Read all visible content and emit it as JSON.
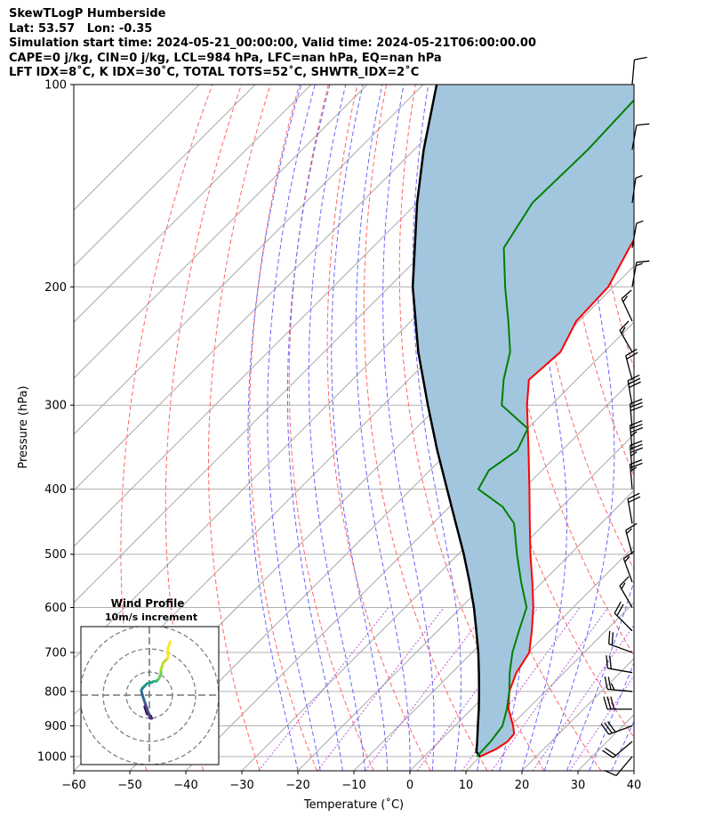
{
  "header": {
    "line1": "SkewTLogP Humberside",
    "line2": "Lat: 53.57   Lon: -0.35",
    "line3": "Simulation start time: 2024-05-21_00:00:00, Valid time: 2024-05-21T06:00:00.00",
    "line4": "CAPE=0 j/kg, CIN=0 j/kg, LCL=984 hPa, LFC=nan hPa, EQ=nan hPa",
    "line5": "LFT IDX=8˚C, K IDX=30˚C, TOTAL TOTS=52˚C, SHWTR_IDX=2˚C"
  },
  "chart_data": [
    {
      "type": "line",
      "subtype": "skew-t log-p",
      "xlabel": "Temperature (˚C)",
      "ylabel": "Pressure (hPa)",
      "xlim": [
        -60,
        40
      ],
      "ylim": [
        1050,
        100
      ],
      "y_scale": "log",
      "x_ticks": [
        "−60",
        "−50",
        "−40",
        "−30",
        "−20",
        "−10",
        "0",
        "10",
        "20",
        "30",
        "40"
      ],
      "y_ticks": [
        "100",
        "200",
        "300",
        "400",
        "500",
        "600",
        "700",
        "800",
        "900",
        "1000"
      ],
      "grid": true,
      "colors": {
        "temperature": "#ff0000",
        "dewpoint": "#008000",
        "parcel": "#000000",
        "fill": "#a3c6df",
        "dry_adiabat": "#ff6666",
        "moist_adiabat": "#6666ff",
        "mixing_ratio": "#aa33cc",
        "isotherm": "#aaaaaa"
      },
      "series": [
        {
          "role": "temperature",
          "pressure": [
            1000,
            975,
            950,
            925,
            900,
            850,
            800,
            750,
            700,
            650,
            600,
            550,
            500,
            450,
            400,
            350,
            300,
            275,
            250,
            225,
            200,
            175,
            150,
            125,
            100
          ],
          "temperature": [
            10.0,
            11.5,
            12.2,
            12.0,
            10.4,
            6.6,
            3.6,
            1.5,
            0.2,
            -3.2,
            -7.1,
            -11.8,
            -17.1,
            -22.7,
            -28.9,
            -36.0,
            -44.3,
            -48.5,
            -47.8,
            -50.5,
            -50.9,
            -54.1,
            -57.4,
            -60.7,
            -64.0
          ]
        },
        {
          "role": "dewpoint",
          "pressure": [
            1000,
            950,
            900,
            850,
            800,
            750,
            700,
            650,
            600,
            550,
            500,
            450,
            425,
            400,
            375,
            350,
            325,
            300,
            275,
            250,
            225,
            200,
            175,
            150,
            125,
            100
          ],
          "dewpoint": [
            9.4,
            9.2,
            8.5,
            6.3,
            3.6,
            0.3,
            -2.8,
            -5.5,
            -8.3,
            -13.8,
            -19.5,
            -25.5,
            -30.5,
            -38.0,
            -39.5,
            -38.0,
            -40.0,
            -48.8,
            -53.0,
            -56.8,
            -62.6,
            -69.3,
            -76.5,
            -79.4,
            -79.0,
            -79.8
          ]
        },
        {
          "role": "parcel",
          "pressure": [
            1000,
            984,
            950,
            900,
            850,
            800,
            750,
            700,
            650,
            600,
            550,
            500,
            450,
            400,
            350,
            300,
            250,
            200,
            150,
            125,
            100
          ],
          "temperature": [
            10.0,
            8.5,
            6.8,
            4.1,
            1.3,
            -1.8,
            -5.2,
            -8.9,
            -13.1,
            -17.7,
            -23.0,
            -29.0,
            -35.9,
            -43.6,
            -52.3,
            -62.0,
            -73.2,
            -85.8,
            -100.0,
            -108.3,
            -117.6
          ]
        }
      ],
      "wind_barbs": {
        "pressure": [
          100,
          125,
          150,
          175,
          200,
          225,
          250,
          275,
          300,
          325,
          350,
          375,
          400,
          450,
          500,
          550,
          600,
          650,
          700,
          750,
          800,
          850,
          900,
          950,
          1000
        ],
        "speed_kt": [
          10,
          10,
          5,
          5,
          15,
          15,
          15,
          20,
          30,
          30,
          35,
          35,
          25,
          20,
          15,
          15,
          15,
          20,
          20,
          20,
          25,
          30,
          30,
          20,
          10
        ],
        "direction_deg": [
          5,
          10,
          8,
          10,
          10,
          335,
          330,
          345,
          350,
          355,
          355,
          355,
          355,
          350,
          345,
          340,
          330,
          315,
          290,
          280,
          275,
          270,
          250,
          230,
          220
        ]
      }
    },
    {
      "type": "line",
      "subtype": "hodograph",
      "title": "Wind Profile",
      "subtitle": "10m/s increment",
      "rings_ms": [
        10,
        20,
        30
      ],
      "u_ms": [
        -2,
        -1,
        0.5,
        1,
        0.5,
        0,
        -1,
        -2,
        -3,
        -3.5,
        -3,
        -2,
        -1,
        1,
        2,
        3,
        4,
        5,
        5,
        6,
        8,
        8,
        9
      ],
      "v_ms": [
        -5,
        -8,
        -9,
        -10,
        -10,
        -9,
        -6,
        -3,
        0,
        2,
        3,
        4,
        5,
        5.5,
        6,
        6,
        7,
        9,
        11,
        14,
        16,
        20,
        23
      ],
      "colormap": "viridis"
    }
  ]
}
